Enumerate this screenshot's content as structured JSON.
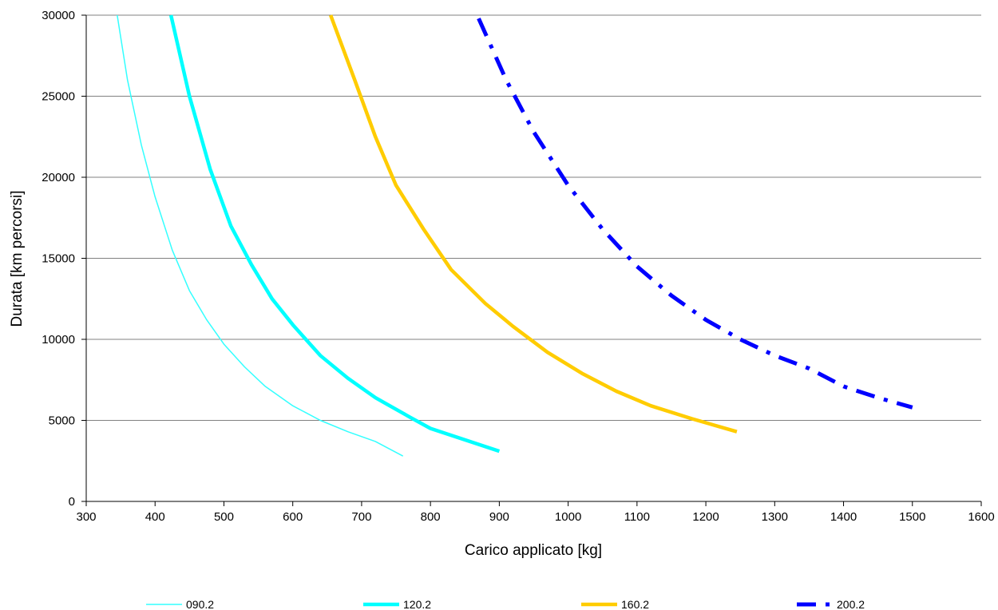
{
  "chart_data": {
    "type": "line",
    "title": "",
    "xlabel": "Carico applicato [kg]",
    "ylabel": "Durata [km percorsi]",
    "xlim": [
      300,
      1600
    ],
    "ylim": [
      0,
      30000
    ],
    "x_ticks": [
      300,
      400,
      500,
      600,
      700,
      800,
      900,
      1000,
      1100,
      1200,
      1300,
      1400,
      1500,
      1600
    ],
    "y_ticks": [
      0,
      5000,
      10000,
      15000,
      20000,
      25000,
      30000
    ],
    "grid": "horizontal",
    "legend_position": "bottom",
    "series": [
      {
        "name": "090.2",
        "color": "#33FFFF",
        "style": "solid-thin",
        "points": [
          [
            345,
            30000
          ],
          [
            360,
            26000
          ],
          [
            380,
            22000
          ],
          [
            400,
            18800
          ],
          [
            425,
            15500
          ],
          [
            450,
            13000
          ],
          [
            475,
            11200
          ],
          [
            500,
            9700
          ],
          [
            530,
            8300
          ],
          [
            560,
            7100
          ],
          [
            600,
            5900
          ],
          [
            640,
            5000
          ],
          [
            680,
            4300
          ],
          [
            720,
            3700
          ],
          [
            760,
            2800
          ]
        ]
      },
      {
        "name": "120.2",
        "color": "#00FFFF",
        "style": "solid-thick",
        "points": [
          [
            423,
            30000
          ],
          [
            450,
            25000
          ],
          [
            480,
            20500
          ],
          [
            510,
            17000
          ],
          [
            540,
            14600
          ],
          [
            570,
            12500
          ],
          [
            600,
            10900
          ],
          [
            640,
            9000
          ],
          [
            680,
            7600
          ],
          [
            720,
            6400
          ],
          [
            770,
            5200
          ],
          [
            800,
            4500
          ],
          [
            850,
            3800
          ],
          [
            900,
            3100
          ]
        ]
      },
      {
        "name": "160.2",
        "color": "#FFCC00",
        "style": "solid-thick",
        "points": [
          [
            655,
            30000
          ],
          [
            690,
            26000
          ],
          [
            720,
            22500
          ],
          [
            750,
            19500
          ],
          [
            790,
            16800
          ],
          [
            830,
            14300
          ],
          [
            880,
            12200
          ],
          [
            920,
            10800
          ],
          [
            970,
            9200
          ],
          [
            1020,
            7900
          ],
          [
            1070,
            6800
          ],
          [
            1120,
            5900
          ],
          [
            1180,
            5100
          ],
          [
            1245,
            4300
          ]
        ]
      },
      {
        "name": "200.2",
        "color": "#0000FF",
        "style": "dash-dot",
        "points": [
          [
            870,
            29800
          ],
          [
            910,
            26000
          ],
          [
            950,
            22800
          ],
          [
            1000,
            19500
          ],
          [
            1050,
            16800
          ],
          [
            1100,
            14500
          ],
          [
            1150,
            12700
          ],
          [
            1200,
            11200
          ],
          [
            1250,
            10000
          ],
          [
            1300,
            9000
          ],
          [
            1350,
            8200
          ],
          [
            1400,
            7100
          ],
          [
            1450,
            6400
          ],
          [
            1500,
            5800
          ]
        ]
      }
    ]
  }
}
